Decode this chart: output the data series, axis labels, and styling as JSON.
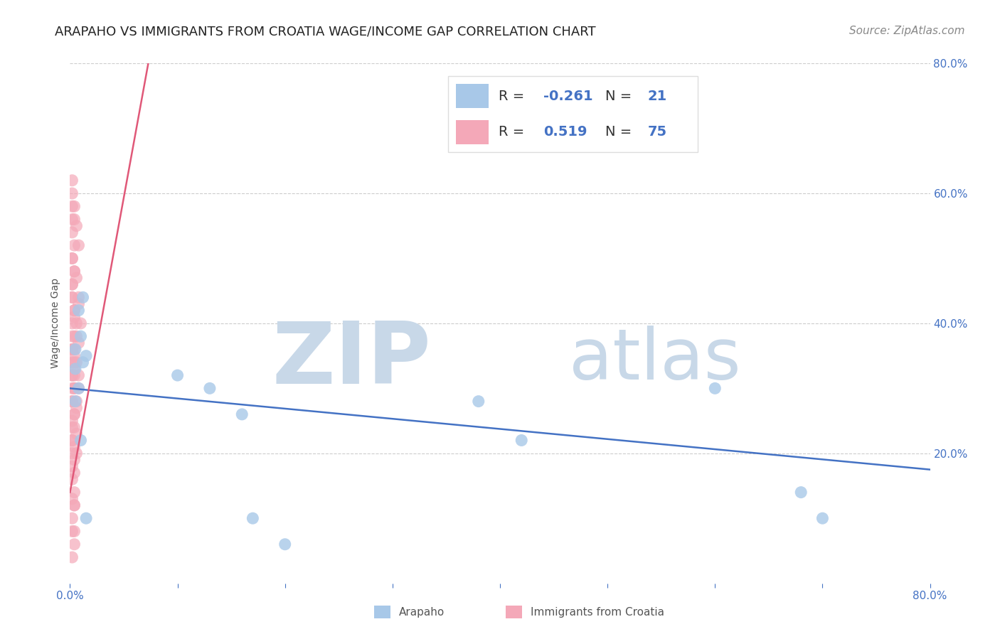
{
  "title": "ARAPAHO VS IMMIGRANTS FROM CROATIA WAGE/INCOME GAP CORRELATION CHART",
  "source": "Source: ZipAtlas.com",
  "ylabel": "Wage/Income Gap",
  "xlim": [
    0.0,
    0.8
  ],
  "ylim": [
    0.0,
    0.8
  ],
  "arapaho_color": "#a8c8e8",
  "croatia_color": "#f4a8b8",
  "arapaho_line_color": "#4472c4",
  "croatia_line_color": "#e05878",
  "arapaho_R": -0.261,
  "arapaho_N": 21,
  "croatia_R": 0.519,
  "croatia_N": 75,
  "arapaho_scatter_x": [
    0.01,
    0.005,
    0.008,
    0.012,
    0.015,
    0.005,
    0.008,
    0.012,
    0.005,
    0.01,
    0.1,
    0.13,
    0.16,
    0.38,
    0.42,
    0.6,
    0.68,
    0.7,
    0.015,
    0.17,
    0.2
  ],
  "arapaho_scatter_y": [
    0.38,
    0.36,
    0.42,
    0.44,
    0.35,
    0.33,
    0.3,
    0.34,
    0.28,
    0.22,
    0.32,
    0.3,
    0.26,
    0.28,
    0.22,
    0.3,
    0.14,
    0.1,
    0.1,
    0.1,
    0.06
  ],
  "croatia_scatter_x": [
    0.002,
    0.004,
    0.006,
    0.008,
    0.002,
    0.004,
    0.006,
    0.008,
    0.002,
    0.004,
    0.006,
    0.008,
    0.002,
    0.004,
    0.006,
    0.008,
    0.002,
    0.004,
    0.006,
    0.008,
    0.002,
    0.004,
    0.006,
    0.008,
    0.002,
    0.004,
    0.006,
    0.002,
    0.004,
    0.006,
    0.002,
    0.004,
    0.006,
    0.002,
    0.004,
    0.002,
    0.004,
    0.002,
    0.004,
    0.002,
    0.004,
    0.002,
    0.002,
    0.002,
    0.004,
    0.002,
    0.004,
    0.002,
    0.004,
    0.002,
    0.004,
    0.002,
    0.004,
    0.002,
    0.004,
    0.002,
    0.002,
    0.004,
    0.002,
    0.004,
    0.002,
    0.004,
    0.002,
    0.004,
    0.002,
    0.002,
    0.002,
    0.004,
    0.002,
    0.004,
    0.01,
    0.002,
    0.004,
    0.002,
    0.004
  ],
  "croatia_scatter_y": [
    0.56,
    0.58,
    0.55,
    0.52,
    0.5,
    0.48,
    0.47,
    0.44,
    0.46,
    0.42,
    0.4,
    0.43,
    0.44,
    0.41,
    0.38,
    0.37,
    0.36,
    0.35,
    0.34,
    0.32,
    0.3,
    0.32,
    0.28,
    0.3,
    0.28,
    0.26,
    0.27,
    0.25,
    0.24,
    0.23,
    0.22,
    0.21,
    0.2,
    0.38,
    0.36,
    0.34,
    0.33,
    0.32,
    0.3,
    0.28,
    0.26,
    0.24,
    0.22,
    0.2,
    0.19,
    0.18,
    0.17,
    0.16,
    0.14,
    0.13,
    0.12,
    0.1,
    0.08,
    0.5,
    0.48,
    0.46,
    0.44,
    0.42,
    0.4,
    0.38,
    0.36,
    0.34,
    0.32,
    0.3,
    0.62,
    0.6,
    0.58,
    0.56,
    0.54,
    0.52,
    0.4,
    0.08,
    0.06,
    0.04,
    0.12
  ],
  "watermark_zip": "ZIP",
  "watermark_atlas": "atlas",
  "watermark_color": "#c8d8e8",
  "background_color": "#ffffff",
  "grid_color": "#cccccc",
  "title_fontsize": 13,
  "axis_label_fontsize": 10,
  "tick_fontsize": 11,
  "legend_value_fontsize": 14,
  "source_fontsize": 11
}
